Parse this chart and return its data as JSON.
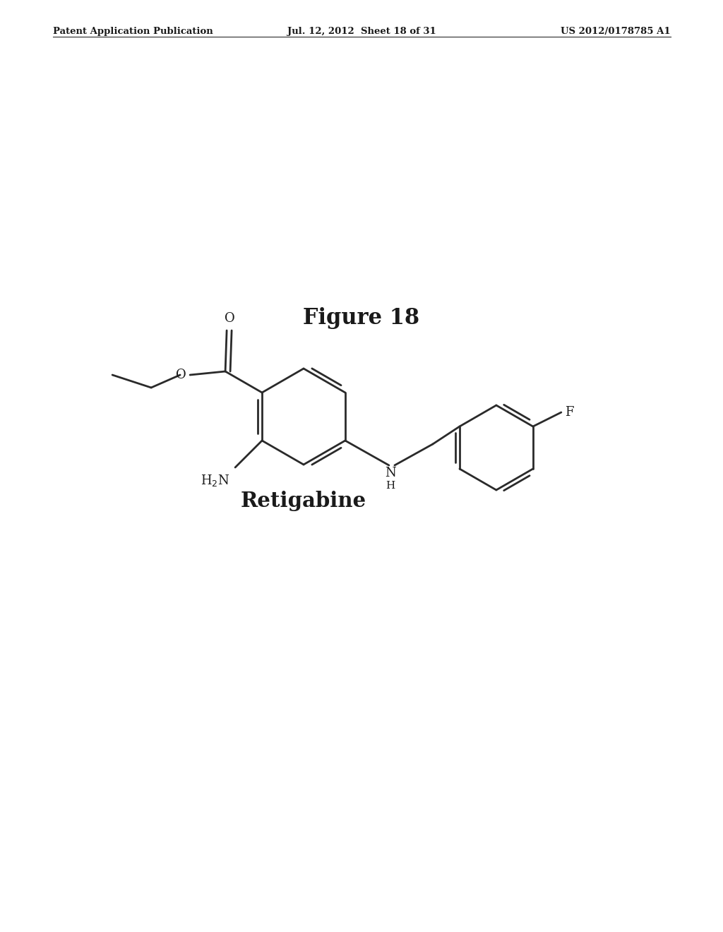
{
  "title": "Figure 18",
  "compound_name": "Retigabine",
  "header_left": "Patent Application Publication",
  "header_mid": "Jul. 12, 2012  Sheet 18 of 31",
  "header_right": "US 2012/0178785 A1",
  "background_color": "#ffffff",
  "line_color": "#2a2a2a",
  "text_color": "#1a1a1a",
  "title_fontsize": 22,
  "compound_fontsize": 20,
  "header_fontsize": 9.5
}
